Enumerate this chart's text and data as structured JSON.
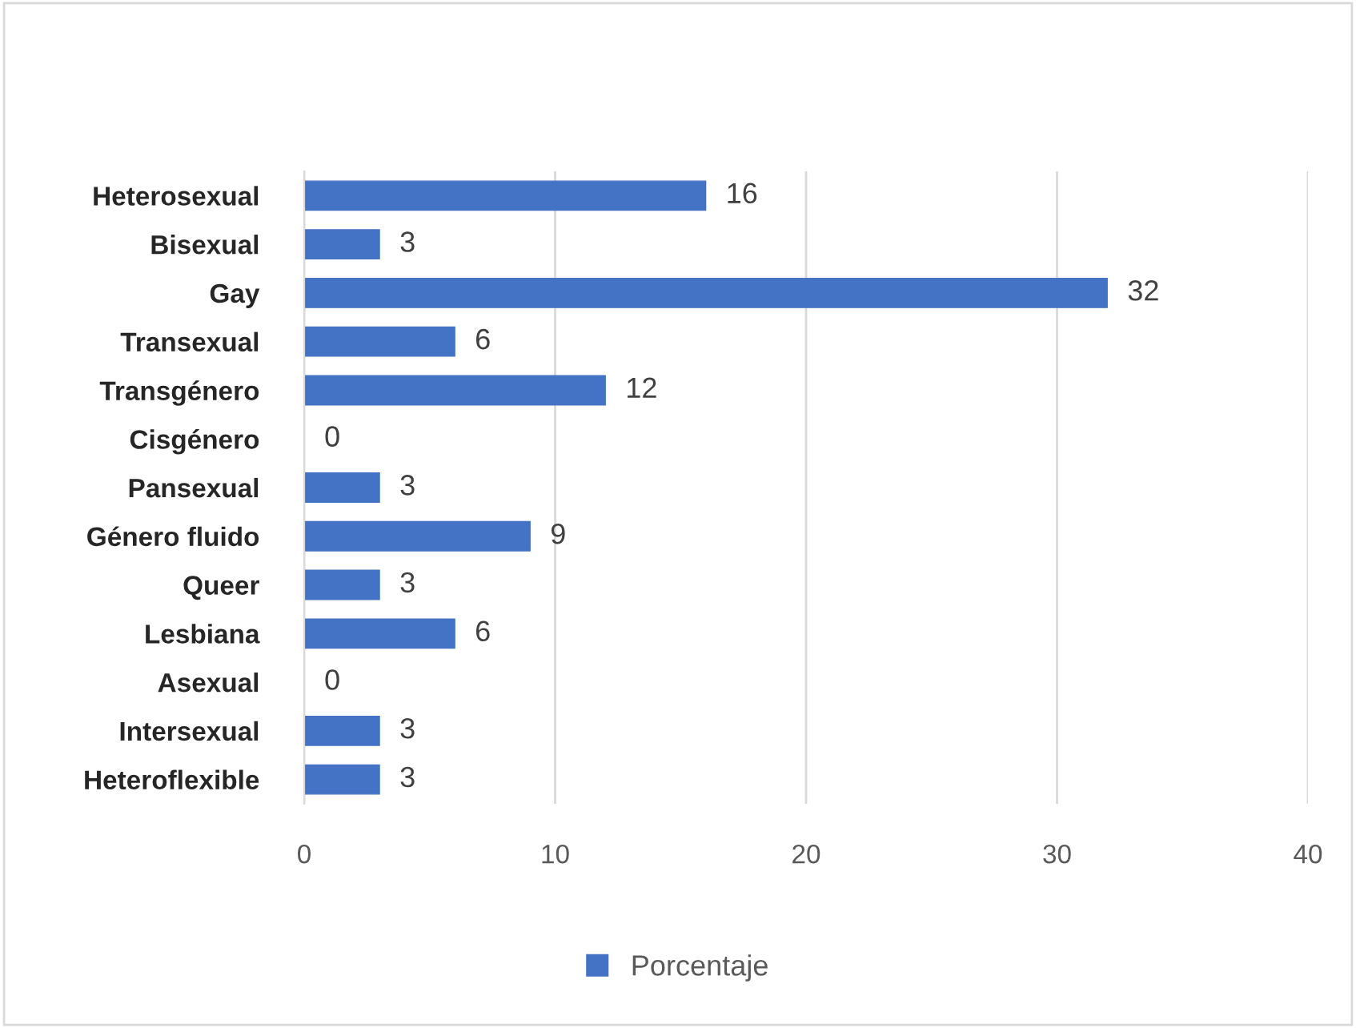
{
  "chart_data": {
    "type": "bar",
    "orientation": "horizontal",
    "categories": [
      "Heterosexual",
      "Bisexual",
      "Gay",
      "Transexual",
      "Transgénero",
      "Cisgénero",
      "Pansexual",
      "Género fluido",
      "Queer",
      "Lesbiana",
      "Asexual",
      "Intersexual",
      "Heteroflexible"
    ],
    "series": [
      {
        "name": "Porcentaje",
        "color": "#4472c4",
        "values": [
          16,
          3,
          32,
          6,
          12,
          0,
          3,
          9,
          3,
          6,
          0,
          3,
          3
        ]
      }
    ],
    "xlim": [
      0,
      40
    ],
    "xticks": [
      0,
      10,
      20,
      30,
      40
    ],
    "grid": "x",
    "legend": "bottom",
    "data_labels": true
  }
}
